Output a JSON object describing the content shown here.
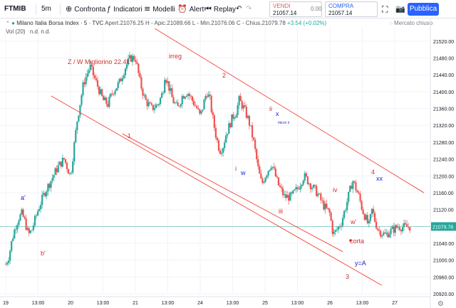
{
  "toolbar": {
    "symbol": "FTMIB",
    "interval": "5m",
    "compare_label": "Confronta",
    "indicators_label": "Indicatori",
    "templates_label": "Modelli",
    "alert_label": "Alert",
    "replay_label": "Replay",
    "sell_label": "VENDI",
    "sell_price": "21057.14",
    "spread": "0.00",
    "buy_label": "COMPRA",
    "buy_price": "21057.14",
    "publish_label": "Pubblica"
  },
  "legend": {
    "title": "Milano Italia Borsa Index · 5 · TVC",
    "open": "Apert.21076.25",
    "high": "H - Apic.21089.66",
    "low": "L - Min.21076.06",
    "close": "C - Chius.21079.78",
    "change": "+3.54 (+0.02%)",
    "volume_label": "Vol (20)",
    "volume_values": "n.d.  n.d.",
    "market_status": "Mercato chiuso"
  },
  "colors": {
    "up": "#26a69a",
    "down": "#ef5350",
    "line": "#f44336",
    "accent": "#2962ff",
    "label_red": "#d32f2f",
    "label_blue": "#1a22c8",
    "price_tag": "#26a69a"
  },
  "price_axis": {
    "ticks": [
      "21520.00",
      "21480.00",
      "21440.00",
      "21400.00",
      "21360.00",
      "21320.00",
      "21280.00",
      "21240.00",
      "21200.00",
      "21160.00",
      "21120.00",
      "21040.00",
      "21000.00",
      "20960.00",
      "20920.00"
    ],
    "current": "21079.78"
  },
  "time_axis": {
    "ticks": [
      "19",
      "13:00",
      "20",
      "13:00",
      "21",
      "13:00",
      "24",
      "13:00",
      "25",
      "13:00",
      "26",
      "13:00",
      "27"
    ]
  },
  "annotations": {
    "title": "Z / W Migliorino 22.4k",
    "a1": "a'",
    "b1": "b'",
    "l1": "1",
    "irreg": "irreg",
    "l2": "2",
    "i": "i",
    "w": "w",
    "ii": "ii",
    "x": "x",
    "micro": "micro ii",
    "iii": "iii",
    "iv": "iv",
    "l3": "3",
    "l4": "4",
    "xx": "xx",
    "w2": "w'",
    "corta": "corta",
    "ya": "y=A"
  },
  "chart_data": {
    "type": "candlestick",
    "x_ticks": [
      "19",
      "13:00",
      "20",
      "13:00",
      "21",
      "13:00",
      "24",
      "13:00",
      "25",
      "13:00",
      "26",
      "13:00",
      "27"
    ],
    "ylim": [
      20920,
      21540
    ],
    "last_price": 21079.78,
    "path_x": [
      0.0,
      0.1,
      0.2,
      0.3,
      0.4,
      0.5,
      0.6,
      0.7,
      0.8,
      1.0,
      1.2,
      1.4,
      1.6,
      1.8,
      2.0,
      2.2,
      2.4,
      2.6,
      2.8,
      2.9,
      3.0,
      3.15,
      3.3,
      3.5,
      3.7,
      3.85,
      4.0,
      4.15,
      4.3,
      4.5,
      4.7,
      4.85,
      4.9,
      5.0,
      5.15,
      5.3,
      5.45,
      5.6,
      5.75,
      5.9,
      6.0,
      6.1,
      6.2,
      6.3,
      6.4,
      6.5,
      6.6,
      6.7,
      6.8,
      6.9,
      7.0,
      7.1,
      7.2,
      7.35,
      7.5,
      7.65,
      7.8,
      7.9,
      8.0,
      8.2,
      8.4,
      8.6,
      8.8,
      9.0,
      9.2,
      9.4,
      9.6,
      9.8,
      10.0,
      10.1,
      10.2,
      10.35,
      10.5,
      10.7,
      10.9,
      11.0,
      11.1,
      11.2,
      11.3,
      11.4,
      11.5,
      11.7,
      11.9,
      12.1,
      12.3,
      12.5
    ],
    "path_y": [
      20990,
      21010,
      21050,
      21080,
      21100,
      21110,
      21090,
      21060,
      21070,
      21120,
      21160,
      21190,
      21220,
      21240,
      21200,
      21330,
      21420,
      21460,
      21420,
      21400,
      21380,
      21370,
      21400,
      21420,
      21460,
      21480,
      21480,
      21420,
      21380,
      21360,
      21370,
      21400,
      21440,
      21420,
      21380,
      21360,
      21390,
      21400,
      21380,
      21360,
      21340,
      21370,
      21400,
      21380,
      21330,
      21290,
      21260,
      21270,
      21300,
      21320,
      21340,
      21350,
      21380,
      21360,
      21330,
      21280,
      21210,
      21180,
      21200,
      21230,
      21180,
      21150,
      21150,
      21170,
      21200,
      21180,
      21160,
      21130,
      21110,
      21060,
      21070,
      21090,
      21130,
      21190,
      21150,
      21120,
      21100,
      21080,
      21120,
      21090,
      21070,
      21060,
      21070,
      21080,
      21078,
      21080
    ],
    "gap_after": [
      2.0
    ],
    "lines": [
      {
        "from": [
          4.6,
          21550
        ],
        "to": [
          12.9,
          21160
        ]
      },
      {
        "from": [
          1.4,
          21390
        ],
        "to": [
          11.6,
          20940
        ]
      },
      {
        "from": [
          3.6,
          21300
        ],
        "to": [
          10.4,
          21020
        ]
      }
    ]
  }
}
